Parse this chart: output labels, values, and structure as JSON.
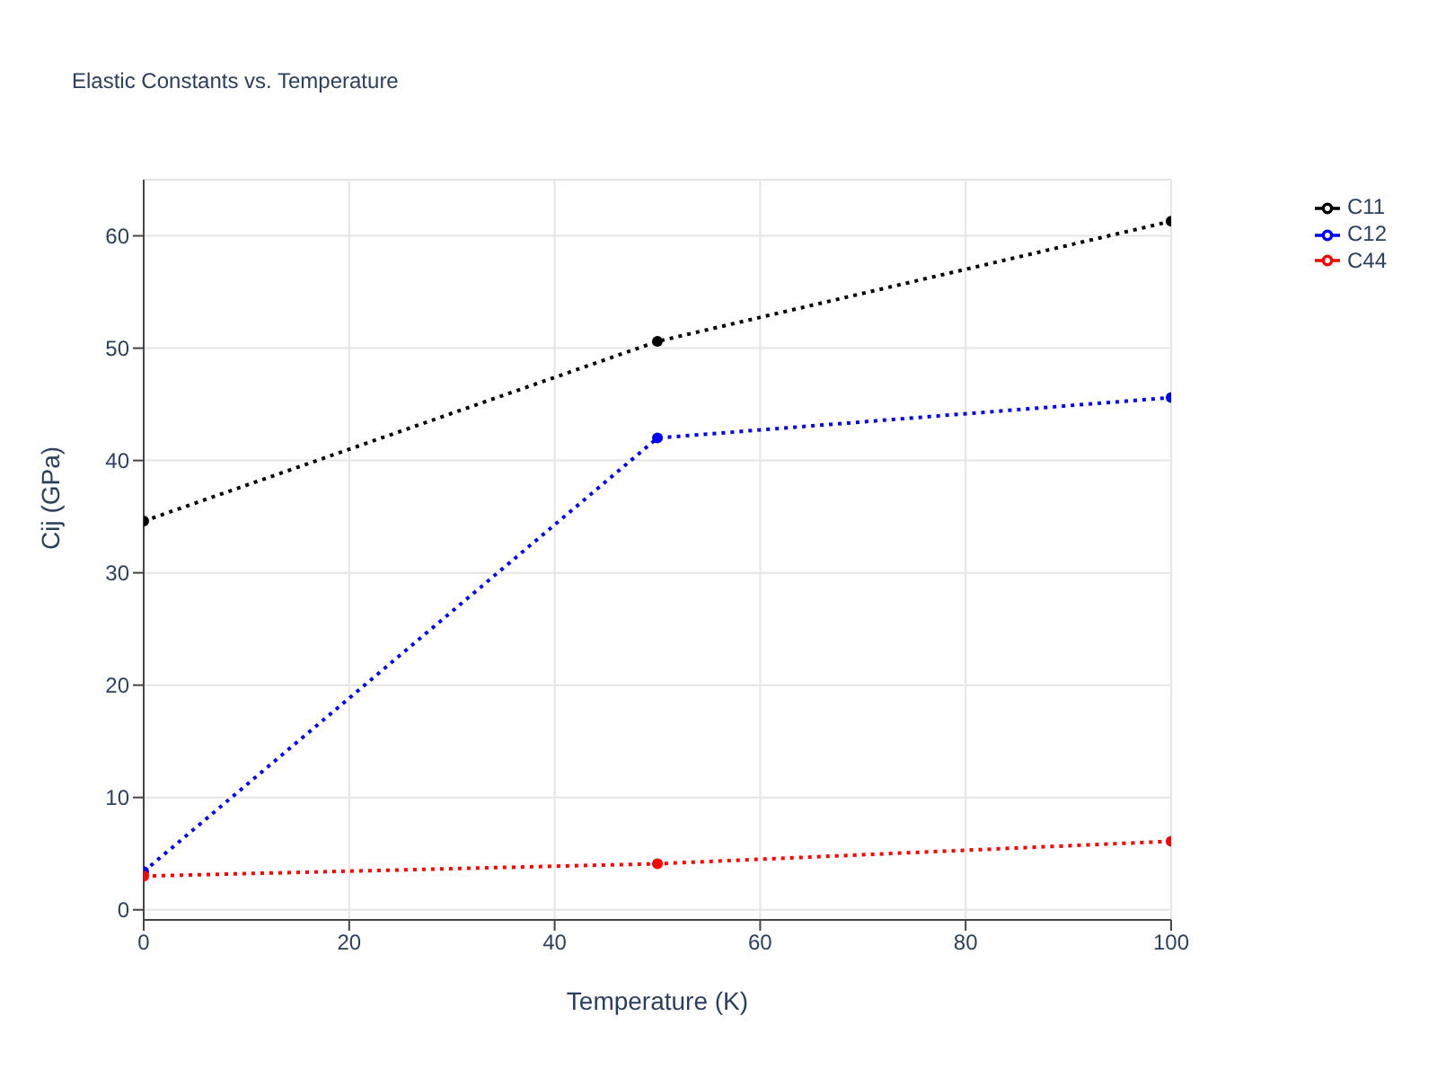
{
  "chart_data": {
    "type": "line",
    "title": "Elastic Constants vs. Temperature",
    "xlabel": "Temperature (K)",
    "ylabel": "Cij (GPa)",
    "x": [
      0,
      50,
      100
    ],
    "series": [
      {
        "name": "C11",
        "color": "#000000",
        "values": [
          34.6,
          50.6,
          61.3
        ]
      },
      {
        "name": "C12",
        "color": "#0000ff",
        "values": [
          3.4,
          42.0,
          45.6
        ]
      },
      {
        "name": "C44",
        "color": "#ff0000",
        "values": [
          3.0,
          4.1,
          6.1
        ]
      }
    ],
    "xlim": [
      0,
      100
    ],
    "xticks": [
      0,
      20,
      40,
      60,
      80,
      100
    ],
    "ylim": [
      -0.9,
      65
    ],
    "yticks": [
      0,
      10,
      20,
      30,
      40,
      50,
      60
    ],
    "grid": true,
    "legend": "top right",
    "marker": "circle",
    "line_style": "dotted"
  }
}
